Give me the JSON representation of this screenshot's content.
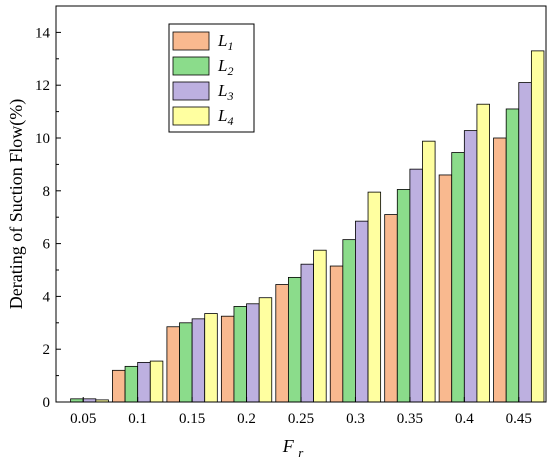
{
  "chart_data": {
    "type": "bar",
    "categories": [
      "0.05",
      "0.1",
      "0.15",
      "0.2",
      "0.25",
      "0.3",
      "0.35",
      "0.4",
      "0.45"
    ],
    "series": [
      {
        "name": "L",
        "sub": "1",
        "color": "#F9B98F",
        "values": [
          0.0,
          1.2,
          2.85,
          3.25,
          4.45,
          5.15,
          7.1,
          8.6,
          10.0
        ]
      },
      {
        "name": "L",
        "sub": "2",
        "color": "#8BDC8B",
        "values": [
          0.12,
          1.35,
          3.0,
          3.62,
          4.72,
          6.15,
          8.05,
          9.45,
          11.1
        ]
      },
      {
        "name": "L",
        "sub": "3",
        "color": "#BDB0E0",
        "values": [
          0.12,
          1.5,
          3.15,
          3.72,
          5.22,
          6.85,
          8.82,
          10.28,
          12.1
        ]
      },
      {
        "name": "L",
        "sub": "4",
        "color": "#FFFFA0",
        "values": [
          0.08,
          1.55,
          3.35,
          3.95,
          5.75,
          7.95,
          9.88,
          11.28,
          13.3
        ]
      }
    ],
    "yticks": [
      "0",
      "2",
      "4",
      "6",
      "8",
      "10",
      "12",
      "14"
    ],
    "ylim": [
      0,
      15
    ],
    "ylabel": "Derating of  Suction Flow(%)",
    "xlabel": {
      "main": "F",
      "sub": "r"
    },
    "legend_position": "top-left",
    "grid": false
  }
}
